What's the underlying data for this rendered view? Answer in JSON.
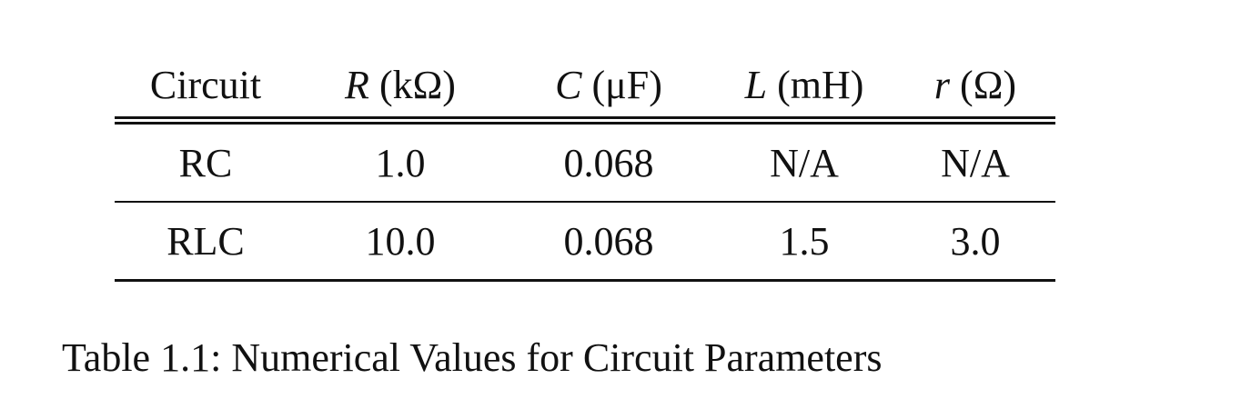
{
  "table": {
    "headers": [
      {
        "symbol": "",
        "unit": "Circuit"
      },
      {
        "symbol": "R",
        "unit": "(kΩ)"
      },
      {
        "symbol": "C",
        "unit": "(μF)"
      },
      {
        "symbol": "L",
        "unit": "(mH)"
      },
      {
        "symbol": "r",
        "unit": "(Ω)"
      }
    ],
    "rows": [
      [
        "RC",
        "1.0",
        "0.068",
        "N/A",
        "N/A"
      ],
      [
        "RLC",
        "10.0",
        "0.068",
        "1.5",
        "3.0"
      ]
    ]
  },
  "caption": "Table 1.1: Numerical Values for Circuit Parameters"
}
